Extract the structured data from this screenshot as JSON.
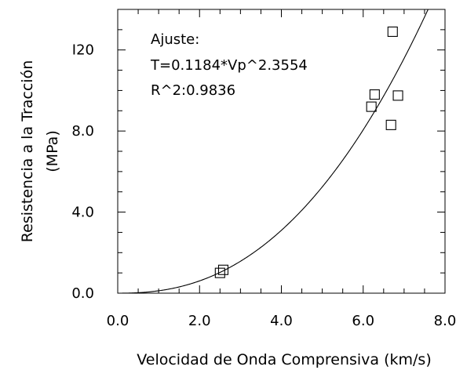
{
  "chart_data": {
    "type": "scatter",
    "title": "",
    "xlabel": "Velocidad de Onda Comprensiva (km/s)",
    "ylabel_lines": [
      "Resistencia a la Tracción",
      "(MPa)"
    ],
    "xlim": [
      0,
      8
    ],
    "ylim": [
      0,
      14
    ],
    "x_ticks": [
      {
        "value": 0,
        "label": "0.0"
      },
      {
        "value": 2,
        "label": "2.0"
      },
      {
        "value": 4,
        "label": "4.0"
      },
      {
        "value": 6,
        "label": "6.0"
      },
      {
        "value": 8,
        "label": "8.0"
      }
    ],
    "y_ticks": [
      {
        "value": 0,
        "label": "0.0"
      },
      {
        "value": 4,
        "label": "4.0"
      },
      {
        "value": 8,
        "label": "8.0"
      },
      {
        "value": 12,
        "label": "I20"
      }
    ],
    "points": [
      {
        "x": 2.5,
        "y": 1.0
      },
      {
        "x": 2.58,
        "y": 1.15
      },
      {
        "x": 6.2,
        "y": 9.2
      },
      {
        "x": 6.28,
        "y": 9.8
      },
      {
        "x": 6.68,
        "y": 8.3
      },
      {
        "x": 6.72,
        "y": 12.9
      },
      {
        "x": 6.85,
        "y": 9.75
      }
    ],
    "fit": {
      "coef": 0.1184,
      "exp": 2.3554
    },
    "annotation_lines": [
      "Ajuste:",
      "T=0.1184*Vp^2.3554",
      "R^2:0.9836"
    ],
    "grid": false,
    "legend": "none"
  }
}
